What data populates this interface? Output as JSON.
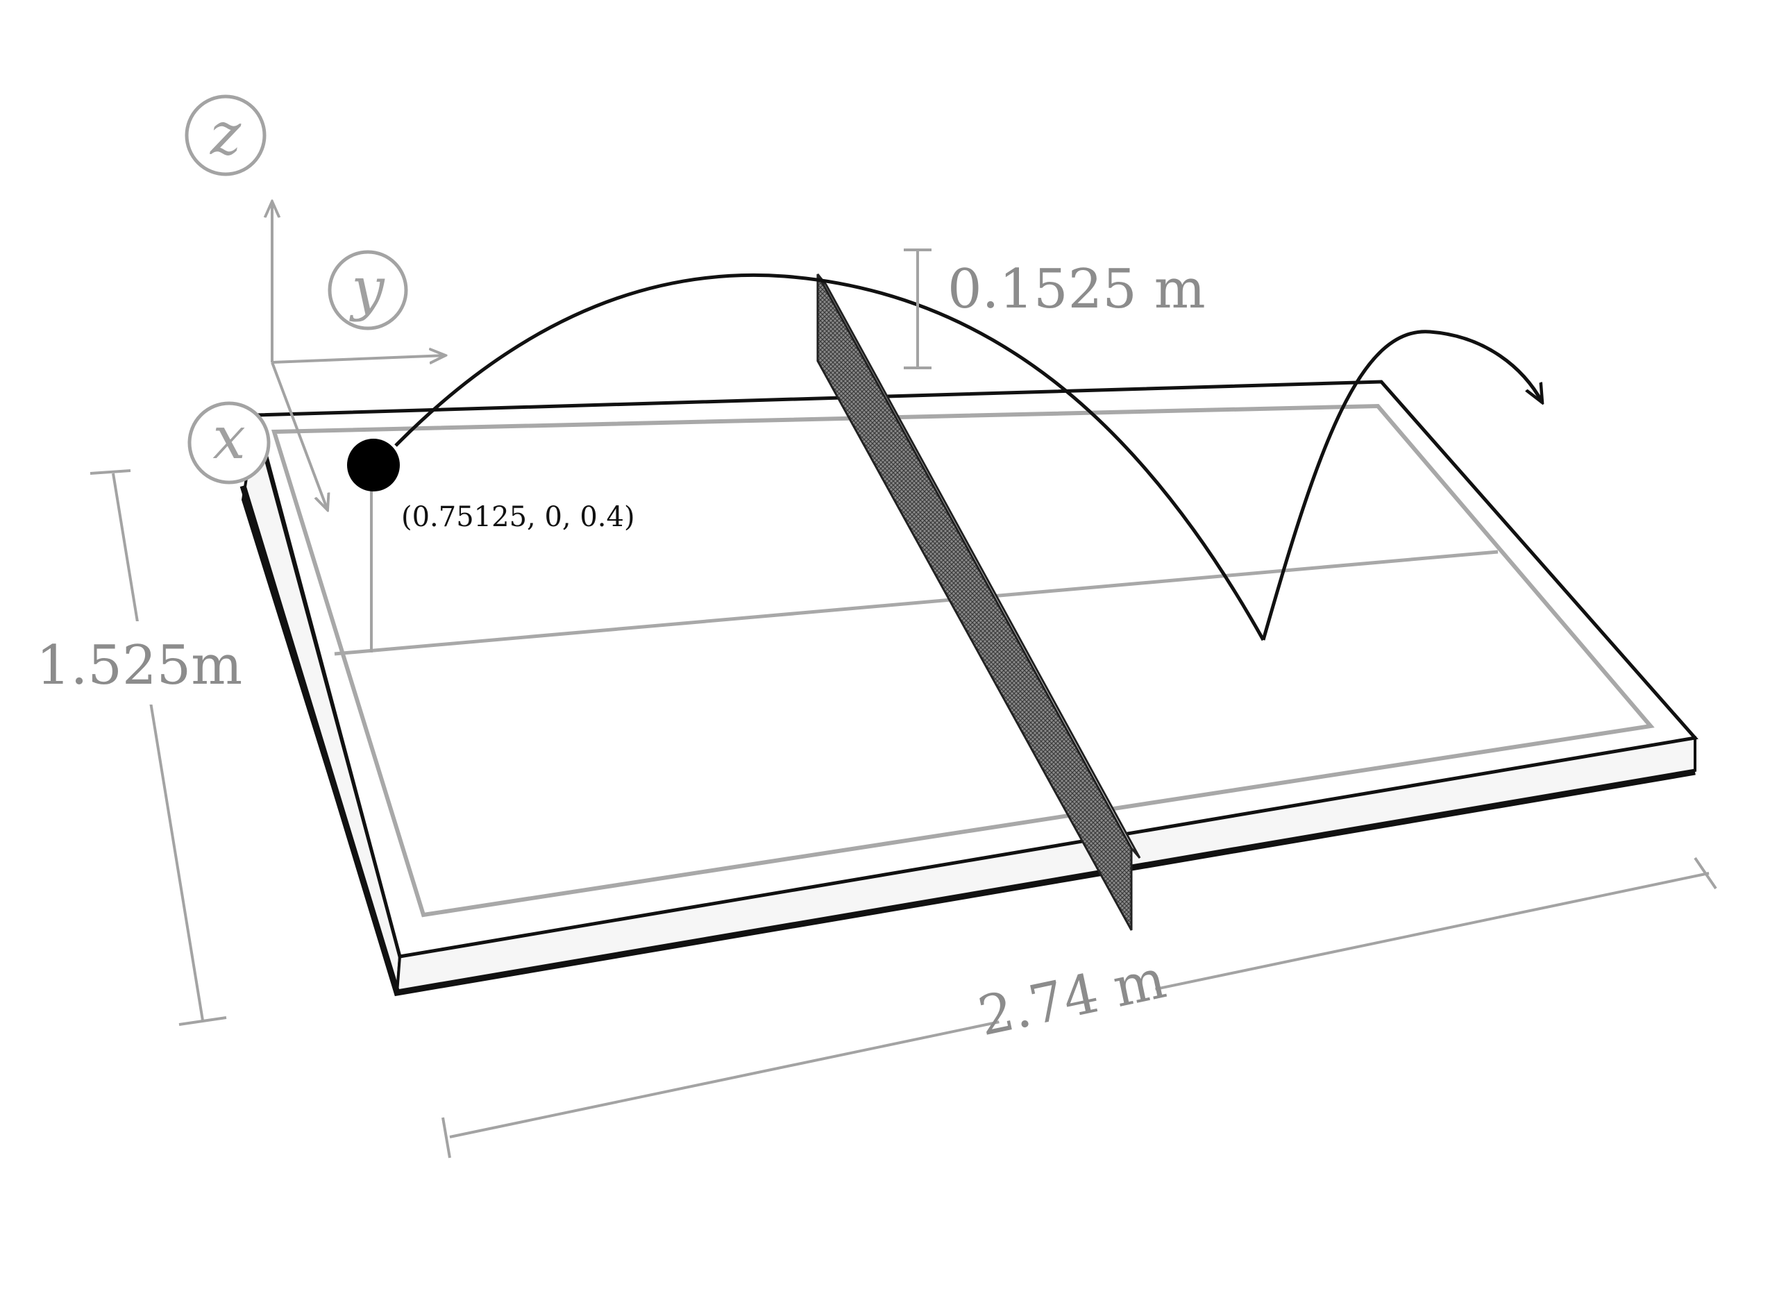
{
  "axes": {
    "x_label": "x",
    "y_label": "y",
    "z_label": "z"
  },
  "dimensions": {
    "net_height": "0.1525 m",
    "table_width": "1.525m",
    "table_length": "2.74 m"
  },
  "ball": {
    "coordinate_label": "(0.75125, 0, 0.4)"
  },
  "colors": {
    "lines": "#111111",
    "annotations": "#a3a3a3",
    "net": "#555555",
    "ball": "#000000"
  }
}
